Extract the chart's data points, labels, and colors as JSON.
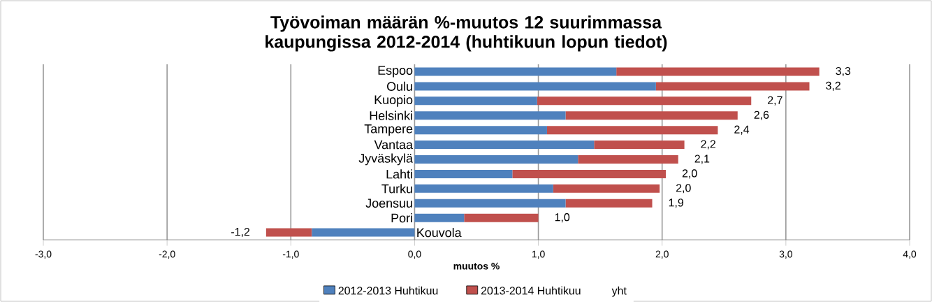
{
  "chart_data": {
    "type": "bar",
    "orientation": "horizontal",
    "stacked": true,
    "title": "Työvoiman määrän %-muutos 12 suurimmassa kaupungissa 2012-2014 (huhtikuun lopun tiedot)",
    "xlabel": "muutos %",
    "categories": [
      "Espoo",
      "Oulu",
      "Kuopio",
      "Helsinki",
      "Tampere",
      "Vantaa",
      "Jyväskylä",
      "Lahti",
      "Turku",
      "Joensuu",
      "Pori",
      "Kouvola"
    ],
    "series": [
      {
        "name": "2012-2013 Huhtikuu",
        "color": "#4f81bd",
        "values": [
          1.63,
          1.95,
          0.99,
          1.22,
          1.07,
          1.45,
          1.32,
          0.79,
          1.12,
          1.22,
          0.4,
          -0.83
        ]
      },
      {
        "name": "2013-2014 Huhtikuu",
        "color": "#c0504d",
        "values": [
          1.64,
          1.24,
          1.73,
          1.39,
          1.38,
          0.73,
          0.81,
          1.24,
          0.86,
          0.7,
          0.6,
          -0.37
        ]
      },
      {
        "name": "yht",
        "values": [
          null,
          null,
          null,
          null,
          null,
          null,
          null,
          null,
          null,
          null,
          null,
          null
        ]
      }
    ],
    "totals": [
      "3,3",
      "3,2",
      "2,7",
      "2,6",
      "2,4",
      "2,2",
      "2,1",
      "2,0",
      "2,0",
      "1,9",
      "1,0",
      "-1,2"
    ],
    "xlim": [
      -3,
      4
    ],
    "xticks": [
      {
        "value": -3,
        "label": "-3,0"
      },
      {
        "value": -2,
        "label": "-2,0"
      },
      {
        "value": -1,
        "label": "-1,0"
      },
      {
        "value": 0,
        "label": "0,0"
      },
      {
        "value": 1,
        "label": "1,0"
      },
      {
        "value": 2,
        "label": "2,0"
      },
      {
        "value": 3,
        "label": "3,0"
      },
      {
        "value": 4,
        "label": "4,0"
      }
    ],
    "grid": "x",
    "legend": "bottom"
  }
}
